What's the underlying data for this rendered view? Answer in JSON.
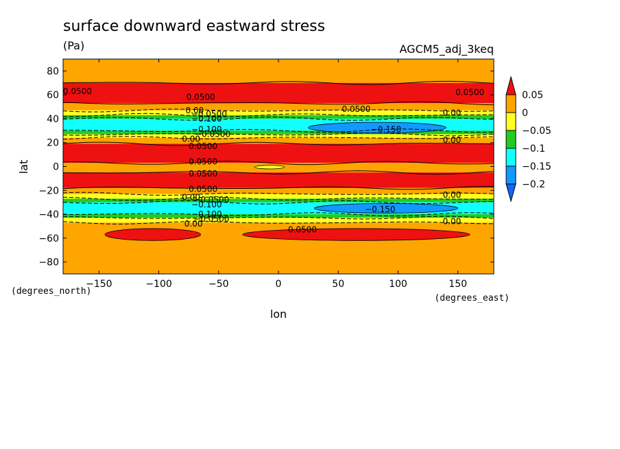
{
  "chart_data": {
    "type": "heatmap",
    "title": "surface downward eastward stress",
    "units": "(Pa)",
    "model_label": "AGCM5_adj_3keq",
    "xlabel": "lon",
    "ylabel": "lat",
    "x_unit_label": "(degrees_east)",
    "y_unit_label": "(degrees_north)",
    "xlim": [
      -180,
      180
    ],
    "ylim": [
      -90,
      90
    ],
    "x_ticks": [
      -150,
      -100,
      -50,
      0,
      50,
      100,
      150
    ],
    "y_ticks": [
      80,
      60,
      40,
      20,
      0,
      -20,
      -40,
      -60,
      -80
    ],
    "x_tick_labels": [
      "−150",
      "−100",
      "−50",
      "0",
      "50",
      "100",
      "150"
    ],
    "y_tick_labels": [
      "80",
      "60",
      "40",
      "20",
      "0",
      "−20",
      "−40",
      "−60",
      "−80"
    ],
    "legend": {
      "placement": "right",
      "labels": [
        "0.05",
        "0",
        "−0.05",
        "−0.1",
        "−0.15",
        "−0.2"
      ],
      "levels": [
        0.05,
        0,
        -0.05,
        -0.1,
        -0.15,
        -0.2
      ],
      "colors": [
        "#ee1111",
        "#ffa500",
        "#ffff22",
        "#22cc22",
        "#11ffff",
        "#1199ff",
        "#1166ff"
      ]
    },
    "lat_bands": [
      {
        "from": 90,
        "to": 70,
        "level": 0.0
      },
      {
        "from": 70,
        "to": 53,
        "level": 0.05
      },
      {
        "from": 53,
        "to": 47,
        "level": 0.0
      },
      {
        "from": 47,
        "to": 43,
        "level": -0.05
      },
      {
        "from": 43,
        "to": 40,
        "level": -0.1
      },
      {
        "from": 40,
        "to": 30,
        "level": -0.15
      },
      {
        "from": 30,
        "to": 27,
        "level": -0.1
      },
      {
        "from": 27,
        "to": 24,
        "level": -0.05
      },
      {
        "from": 24,
        "to": 19,
        "level": 0.0
      },
      {
        "from": 19,
        "to": 3,
        "level": 0.05
      },
      {
        "from": 3,
        "to": -5,
        "level": 0.0
      },
      {
        "from": -5,
        "to": -18,
        "level": 0.05
      },
      {
        "from": -18,
        "to": -23,
        "level": 0.0
      },
      {
        "from": -23,
        "to": -27,
        "level": -0.05
      },
      {
        "from": -27,
        "to": -30,
        "level": -0.1
      },
      {
        "from": -30,
        "to": -40,
        "level": -0.15
      },
      {
        "from": -40,
        "to": -43,
        "level": -0.1
      },
      {
        "from": -43,
        "to": -47,
        "level": -0.05
      },
      {
        "from": -47,
        "to": -90,
        "level": 0.0
      }
    ],
    "features": [
      {
        "type": "region",
        "level": -0.2,
        "lon": [
          25,
          140
        ],
        "lat": [
          28,
          37
        ]
      },
      {
        "type": "region",
        "level": -0.2,
        "lon": [
          30,
          150
        ],
        "lat": [
          -31,
          -39
        ]
      },
      {
        "type": "region",
        "level": -0.05,
        "lon": [
          -20,
          5
        ],
        "lat": [
          1,
          -2
        ]
      },
      {
        "type": "region",
        "level": 0.05,
        "lon": [
          -145,
          -65
        ],
        "lat": [
          -52,
          -62
        ]
      },
      {
        "type": "region",
        "level": 0.05,
        "lon": [
          -30,
          160
        ],
        "lat": [
          -52,
          -62
        ]
      }
    ],
    "contour_labels": [
      {
        "text": "0.0500",
        "lon": -168,
        "lat": 63
      },
      {
        "text": "0.0500",
        "lon": -65,
        "lat": 58
      },
      {
        "text": "0.0500",
        "lon": 160,
        "lat": 62
      },
      {
        "text": "0.0500",
        "lon": 65,
        "lat": 48
      },
      {
        "text": "0.00",
        "lon": -70,
        "lat": 47
      },
      {
        "text": "0.00",
        "lon": 145,
        "lat": 45
      },
      {
        "text": "−0.0500",
        "lon": -58,
        "lat": 44
      },
      {
        "text": "−0.100",
        "lon": -60,
        "lat": 40
      },
      {
        "text": "−0.150",
        "lon": 90,
        "lat": 31
      },
      {
        "text": "−0.100",
        "lon": -60,
        "lat": 31
      },
      {
        "text": "−0.0500",
        "lon": -55,
        "lat": 27
      },
      {
        "text": "0.00",
        "lon": -73,
        "lat": 23
      },
      {
        "text": "0.00",
        "lon": 145,
        "lat": 22
      },
      {
        "text": "0.0500",
        "lon": -63,
        "lat": 17
      },
      {
        "text": "0.0500",
        "lon": -63,
        "lat": 4
      },
      {
        "text": "0.0500",
        "lon": -63,
        "lat": -6
      },
      {
        "text": "0.0500",
        "lon": -63,
        "lat": -19
      },
      {
        "text": "0.00",
        "lon": 145,
        "lat": -24
      },
      {
        "text": "0.00",
        "lon": -73,
        "lat": -26
      },
      {
        "text": "−0.0500",
        "lon": -56,
        "lat": -28
      },
      {
        "text": "−0.100",
        "lon": -60,
        "lat": -32
      },
      {
        "text": "−0.150",
        "lon": 85,
        "lat": -36
      },
      {
        "text": "−0.100",
        "lon": -60,
        "lat": -40
      },
      {
        "text": "−0.0500",
        "lon": -56,
        "lat": -44
      },
      {
        "text": "0.00",
        "lon": -71,
        "lat": -48
      },
      {
        "text": "0.00",
        "lon": 145,
        "lat": -46
      },
      {
        "text": "0.0500",
        "lon": 20,
        "lat": -53
      }
    ]
  }
}
